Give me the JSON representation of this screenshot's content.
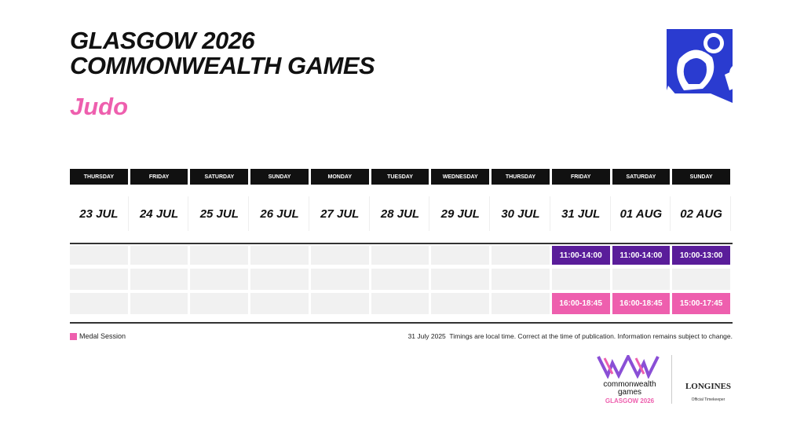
{
  "header": {
    "title": [
      "GLASGOW 2026",
      "COMMONWEALTH GAMES"
    ],
    "sport": "Judo"
  },
  "table": {
    "days": [
      {
        "weekday": "THURSDAY",
        "date": "23 JUL"
      },
      {
        "weekday": "FRIDAY",
        "date": "24 JUL"
      },
      {
        "weekday": "SATURDAY",
        "date": "25 JUL"
      },
      {
        "weekday": "SUNDAY",
        "date": "26 JUL"
      },
      {
        "weekday": "MONDAY",
        "date": "27 JUL"
      },
      {
        "weekday": "TUESDAY",
        "date": "28 JUL"
      },
      {
        "weekday": "WEDNESDAY",
        "date": "29 JUL"
      },
      {
        "weekday": "THURSDAY",
        "date": "30 JUL"
      },
      {
        "weekday": "FRIDAY",
        "date": "31 JUL"
      },
      {
        "weekday": "SATURDAY",
        "date": "01 AUG"
      },
      {
        "weekday": "SUNDAY",
        "date": "02 AUG"
      }
    ],
    "sessions": [
      {
        "color": "#5a1d9a",
        "times": [
          null,
          null,
          null,
          null,
          null,
          null,
          null,
          null,
          "11:00-14:00",
          "11:00-14:00",
          "10:00-13:00"
        ]
      },
      {
        "times": [
          null,
          null,
          null,
          null,
          null,
          null,
          null,
          null,
          null,
          null,
          null
        ]
      },
      {
        "color": "#ee5fae",
        "times": [
          null,
          null,
          null,
          null,
          null,
          null,
          null,
          null,
          "16:00-18:45",
          "16:00-18:45",
          "15:00-17:45"
        ]
      }
    ]
  },
  "legend": {
    "label": "Medal Session",
    "color": "#ee5fae"
  },
  "footer": {
    "date": "31 July 2025",
    "note": "Timings are local time. Correct at the time of publication. Information remains subject to change."
  },
  "logos": {
    "games": [
      "commonwealth",
      "games"
    ],
    "city": "GLASGOW 2026",
    "sponsor": "LONGINES",
    "sponsor_role": "Official Timekeeper"
  }
}
